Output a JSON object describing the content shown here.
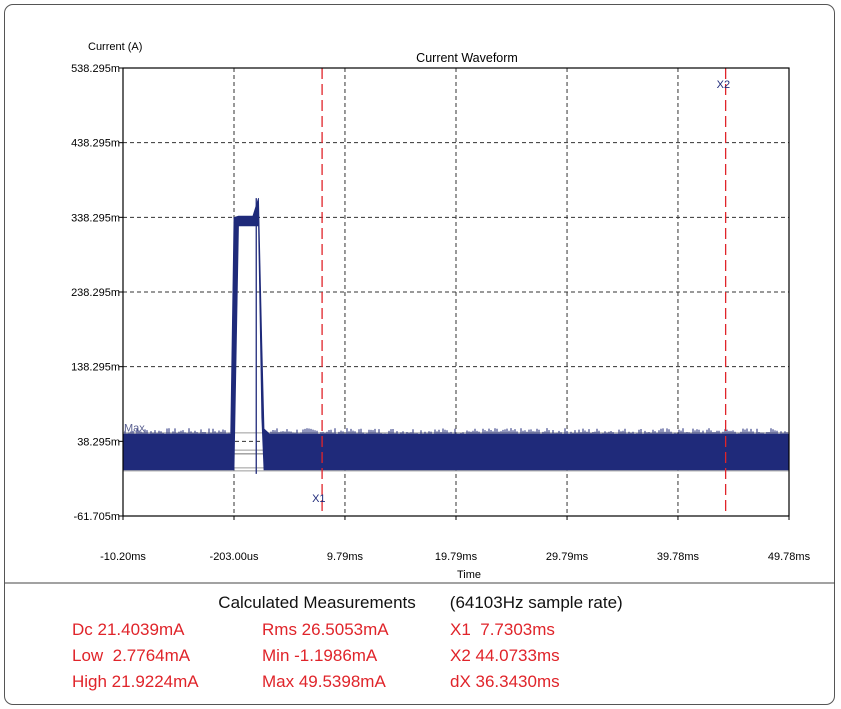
{
  "chart_data": {
    "type": "line",
    "title": "Current Waveform",
    "ylabel": "Current (A)",
    "xlabel": "Time",
    "ylim": [
      -0.061705,
      0.538295
    ],
    "xlim": [
      -10.2,
      49.78
    ],
    "y_ticks": [
      "538.295m",
      "438.295m",
      "338.295m",
      "238.295m",
      "138.295m",
      "38.295m",
      "-61.705m"
    ],
    "y_tick_values": [
      0.538295,
      0.438295,
      0.338295,
      0.238295,
      0.138295,
      0.038295,
      -0.061705
    ],
    "x_ticks": [
      "-10.20ms",
      "-203.00us",
      "9.79ms",
      "19.79ms",
      "29.79ms",
      "39.78ms",
      "49.78ms"
    ],
    "x_tick_values": [
      -10.2,
      -0.203,
      9.79,
      19.79,
      29.79,
      39.78,
      49.78
    ],
    "grid": true,
    "series": [
      {
        "name": "",
        "color": "#1f2a7a",
        "envelope": [
          {
            "x": -10.2,
            "min": 0.0,
            "max": 0.048
          },
          {
            "x": -0.5,
            "min": 0.0,
            "max": 0.048
          },
          {
            "x": -0.2,
            "min": 0.0,
            "max": 0.338
          },
          {
            "x": 0.2,
            "min": 0.327,
            "max": 0.34
          },
          {
            "x": 1.5,
            "min": 0.327,
            "max": 0.34
          },
          {
            "x": 2.0,
            "min": 0.327,
            "max": 0.364
          },
          {
            "x": 2.3,
            "min": 0.07,
            "max": 0.17
          },
          {
            "x": 2.5,
            "min": 0.0,
            "max": 0.055
          },
          {
            "x": 3.0,
            "min": 0.0,
            "max": 0.048
          },
          {
            "x": 49.78,
            "min": 0.0,
            "max": 0.048
          }
        ],
        "min_spike": {
          "x": 1.8,
          "y": -0.0012
        }
      }
    ],
    "annotations": [
      {
        "label": "Max",
        "x": -10.0,
        "y": 0.049
      }
    ],
    "cursors": [
      {
        "label": "X1",
        "x": 7.7303,
        "color": "#e0242a"
      },
      {
        "label": "X2",
        "x": 44.0733,
        "color": "#e0242a"
      }
    ],
    "reference_levels": [
      0.04954,
      0.0219,
      0.02654,
      0.0214,
      0.00278,
      -0.0012
    ]
  },
  "measurements": {
    "title": "Calculated Measurements",
    "sample_rate": "(64103Hz sample rate)",
    "rows": [
      [
        "Dc 21.4039mA",
        "Rms 26.5053mA",
        "X1  7.7303ms"
      ],
      [
        "Low  2.7764mA",
        "Min -1.1986mA",
        "X2 44.0733ms"
      ],
      [
        "High 21.9224mA",
        "Max 49.5398mA",
        "dX 36.3430ms"
      ]
    ]
  }
}
